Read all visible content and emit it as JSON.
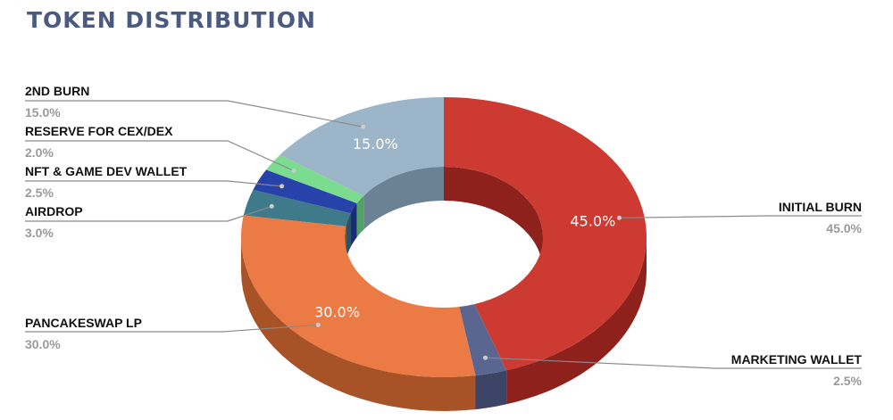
{
  "title": "TOKEN DISTRIBUTION",
  "chart_data": {
    "type": "pie",
    "variant": "3d-donut",
    "title": "TOKEN DISTRIBUTION",
    "slices": [
      {
        "label": "INITIAL BURN",
        "value": 45.0,
        "value_label": "45.0%",
        "color": "#cc3a31",
        "dark": "#8f211d",
        "inner_label": "45.0%"
      },
      {
        "label": "MARKETING WALLET",
        "value": 2.5,
        "value_label": "2.5%",
        "color": "#5a6690",
        "dark": "#3b4466",
        "inner_label": ""
      },
      {
        "label": "PANCAKESWAP LP",
        "value": 30.0,
        "value_label": "30.0%",
        "color": "#eb7a44",
        "dark": "#a85228",
        "inner_label": "30.0%"
      },
      {
        "label": "AIRDROP",
        "value": 3.0,
        "value_label": "3.0%",
        "color": "#3e7a8a",
        "dark": "#2a5560",
        "inner_label": ""
      },
      {
        "label": "NFT & GAME DEV WALLET",
        "value": 2.5,
        "value_label": "2.5%",
        "color": "#2742a8",
        "dark": "#1a2d74",
        "inner_label": ""
      },
      {
        "label": "RESERVE FOR CEX/DEX",
        "value": 2.0,
        "value_label": "2.0%",
        "color": "#7bdc8f",
        "dark": "#52a064",
        "inner_label": ""
      },
      {
        "label": "2ND BURN",
        "value": 15.0,
        "value_label": "15.0%",
        "color": "#9db5c8",
        "dark": "#6a8294",
        "inner_label": "15.0%"
      }
    ],
    "start": "12 o'clock",
    "direction": "clockwise",
    "legend": "none"
  }
}
